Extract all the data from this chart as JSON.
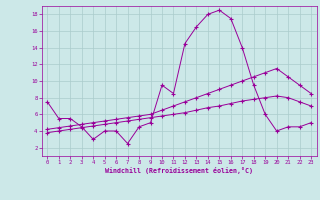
{
  "xlabel": "Windchill (Refroidissement éolien,°C)",
  "xlim": [
    -0.5,
    23.5
  ],
  "ylim": [
    1,
    19
  ],
  "yticks": [
    2,
    4,
    6,
    8,
    10,
    12,
    14,
    16,
    18
  ],
  "xticks": [
    0,
    1,
    2,
    3,
    4,
    5,
    6,
    7,
    8,
    9,
    10,
    11,
    12,
    13,
    14,
    15,
    16,
    17,
    18,
    19,
    20,
    21,
    22,
    23
  ],
  "background_color": "#cce8e8",
  "grid_color": "#aacccc",
  "line_color": "#990099",
  "line1_x": [
    0,
    1,
    2,
    3,
    4,
    5,
    6,
    7,
    8,
    9,
    10,
    11,
    12,
    13,
    14,
    15,
    16,
    17,
    18,
    19,
    20,
    21,
    22,
    23
  ],
  "line1_y": [
    7.5,
    5.5,
    5.5,
    4.5,
    3.0,
    4.0,
    4.0,
    2.5,
    4.5,
    5.0,
    9.5,
    8.5,
    14.5,
    16.5,
    18.0,
    18.5,
    17.5,
    14.0,
    9.5,
    6.0,
    4.0,
    4.5,
    4.5,
    5.0
  ],
  "line2_x": [
    0,
    1,
    2,
    3,
    4,
    5,
    6,
    7,
    8,
    9,
    10,
    11,
    12,
    13,
    14,
    15,
    16,
    17,
    18,
    19,
    20,
    21,
    22,
    23
  ],
  "line2_y": [
    4.2,
    4.4,
    4.6,
    4.8,
    5.0,
    5.2,
    5.4,
    5.6,
    5.8,
    6.0,
    6.5,
    7.0,
    7.5,
    8.0,
    8.5,
    9.0,
    9.5,
    10.0,
    10.5,
    11.0,
    11.5,
    10.5,
    9.5,
    8.5
  ],
  "line3_x": [
    0,
    1,
    2,
    3,
    4,
    5,
    6,
    7,
    8,
    9,
    10,
    11,
    12,
    13,
    14,
    15,
    16,
    17,
    18,
    19,
    20,
    21,
    22,
    23
  ],
  "line3_y": [
    3.8,
    4.0,
    4.2,
    4.4,
    4.6,
    4.8,
    5.0,
    5.2,
    5.4,
    5.6,
    5.8,
    6.0,
    6.2,
    6.5,
    6.8,
    7.0,
    7.3,
    7.6,
    7.8,
    8.0,
    8.2,
    8.0,
    7.5,
    7.0
  ]
}
